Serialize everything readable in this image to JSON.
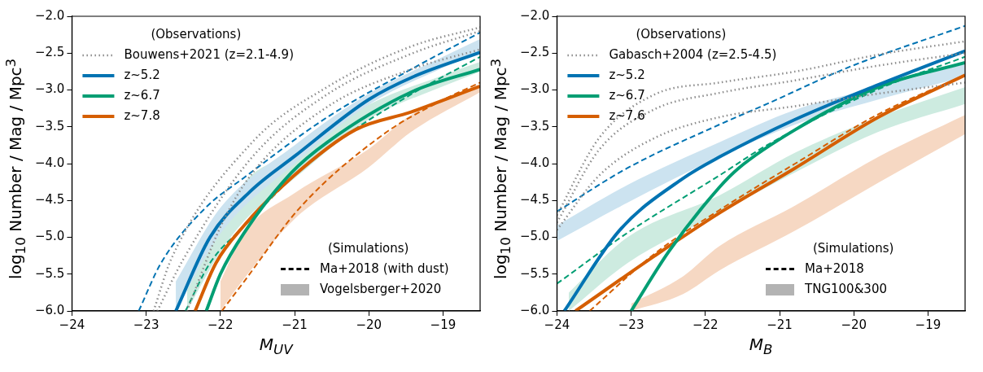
{
  "chart_data": [
    {
      "type": "line",
      "xlabel": "M$_{UV}$",
      "ylabel": "log$_{10}$ Number / Mag / Mpc$^{3}$",
      "legend": "top left",
      "legend_title": "(Observations)",
      "grid": false,
      "xlim": [
        -24,
        -18.5
      ],
      "xticks": [
        {
          "value": -24,
          "label": "−24"
        },
        {
          "value": -23,
          "label": "−23"
        },
        {
          "value": -22,
          "label": "−22"
        },
        {
          "value": -21,
          "label": "−21"
        },
        {
          "value": -20,
          "label": "−20"
        },
        {
          "value": -19,
          "label": "−19"
        }
      ],
      "ylim": [
        -6,
        -2
      ],
      "yticks": [
        {
          "value": -6,
          "label": "−6.0"
        },
        {
          "value": -5.5,
          "label": "−5.5"
        },
        {
          "value": -5,
          "label": "−5.0"
        },
        {
          "value": -4.5,
          "label": "−4.5"
        },
        {
          "value": -4,
          "label": "−4.0"
        },
        {
          "value": -3.5,
          "label": "−3.5"
        },
        {
          "value": -3,
          "label": "−3.0"
        },
        {
          "value": -2.5,
          "label": "−2.5"
        },
        {
          "value": -2,
          "label": "−2.0"
        }
      ],
      "annotations": [
        "(Simulations)",
        "Ma+2018 (with dust)",
        "Vogelsberger+2020"
      ],
      "series": [
        {
          "name": "Bouwens+2021 (z=2.1-4.9)",
          "color": "#8c8c8c",
          "line_style": "dotted",
          "x": [
            -22.9,
            -22.66,
            -21.57,
            -20.56,
            -19.43,
            -18.5
          ],
          "values": [
            -6,
            -5.29,
            -3.71,
            -2.96,
            -2.41,
            -2.15
          ]
        },
        {
          "color": "#8c8c8c",
          "line_style": "dotted",
          "x": [
            -22.85,
            -22.5,
            -21.57,
            -20.56,
            -19.43,
            -18.5
          ],
          "values": [
            -6,
            -5.3,
            -3.91,
            -3.06,
            -2.51,
            -2.2
          ]
        },
        {
          "color": "#8c8c8c",
          "line_style": "dotted",
          "x": [
            -22.45,
            -21.99,
            -21.57,
            -20.56,
            -19.43,
            -18.5
          ],
          "values": [
            -6,
            -4.84,
            -4.13,
            -3.23,
            -2.72,
            -2.45
          ]
        },
        {
          "name": "z~5.2",
          "color": "#0173b2",
          "line_style": "solid",
          "x": [
            -22.6,
            -22.14,
            -21.6,
            -21,
            -20,
            -19.4,
            -18.5
          ],
          "values": [
            -6,
            -5.0,
            -4.38,
            -3.9,
            -3.13,
            -2.82,
            -2.49
          ]
        },
        {
          "name": "z~6.7",
          "color": "#029e73",
          "line_style": "solid",
          "x": [
            -22.19,
            -22.0,
            -21.68,
            -21.04,
            -20.56,
            -19.43,
            -18.5
          ],
          "values": [
            -6,
            -5.5,
            -4.94,
            -4.12,
            -3.71,
            -3.03,
            -2.72
          ]
        },
        {
          "name": "z~7.8",
          "color": "#d55e00",
          "line_style": "solid",
          "x": [
            -22.34,
            -22.06,
            -21.68,
            -21.04,
            -20.18,
            -19.43,
            -18.5
          ],
          "values": [
            -6,
            -5.35,
            -4.84,
            -4.19,
            -3.54,
            -3.3,
            -2.95
          ]
        },
        {
          "color": "#0173b2",
          "line_style": "dashed",
          "x": [
            -23.1,
            -22.8,
            -22.2,
            -21.68,
            -20.56,
            -19.43,
            -18.5
          ],
          "values": [
            -6,
            -5.35,
            -4.6,
            -4.19,
            -3.37,
            -2.72,
            -2.22
          ]
        },
        {
          "color": "#029e73",
          "line_style": "dashed",
          "x": [
            -22.47,
            -22.14,
            -21.68,
            -21.04,
            -20.44,
            -19.43,
            -18.5
          ],
          "values": [
            -6,
            -5.35,
            -4.85,
            -4.2,
            -3.71,
            -3.06,
            -2.55
          ]
        },
        {
          "color": "#d55e00",
          "line_style": "dashed",
          "x": [
            -21.98,
            -21.68,
            -20.93,
            -19.8,
            -19.05,
            -18.5
          ],
          "values": [
            -6,
            -5.6,
            -4.6,
            -3.6,
            -3.16,
            -2.9
          ]
        },
        {
          "color": "#cce3f0",
          "x": [
            -22.6,
            -22,
            -21,
            -20,
            -19,
            -18.5
          ],
          "values": [
            null,
            null,
            null,
            null,
            null,
            null
          ],
          "upper": [
            -5.6,
            -4.6,
            -3.75,
            -3.05,
            -2.55,
            -2.31
          ],
          "lower": [
            -6,
            -4.95,
            -4.0,
            -3.2,
            -2.7,
            -2.49
          ]
        },
        {
          "color": "#cdebe0",
          "x": [
            -22.45,
            -22,
            -21.68,
            -21,
            -20,
            -19,
            -18.5
          ],
          "values": [
            null,
            null,
            null,
            null,
            null,
            null,
            null
          ],
          "upper": [
            -5.6,
            -4.85,
            -4.26,
            -3.85,
            -3.2,
            -2.8,
            -2.62
          ],
          "lower": [
            -6,
            -5.2,
            -4.78,
            -4.2,
            -3.4,
            -2.95,
            -2.75
          ]
        },
        {
          "color": "#f6d8c3",
          "x": [
            -22.0,
            -21.68,
            -21,
            -20,
            -19.43,
            -18.5
          ],
          "values": [
            null,
            null,
            null,
            null,
            null,
            null
          ],
          "upper": [
            -5.6,
            -4.94,
            -4.4,
            -3.8,
            -3.34,
            -2.96
          ],
          "lower": [
            -6,
            -5.56,
            -4.75,
            -4.05,
            -3.57,
            -3.03
          ]
        }
      ]
    },
    {
      "type": "line",
      "xlabel": "M$_{B}$",
      "ylabel": "log$_{10}$ Number / Mag / Mpc$^{3}$",
      "legend": "top left",
      "legend_title": "(Observations)",
      "grid": false,
      "xlim": [
        -24,
        -18.5
      ],
      "xticks": [
        {
          "value": -24,
          "label": "−24"
        },
        {
          "value": -23,
          "label": "−23"
        },
        {
          "value": -22,
          "label": "−22"
        },
        {
          "value": -21,
          "label": "−21"
        },
        {
          "value": -20,
          "label": "−20"
        },
        {
          "value": -19,
          "label": "−19"
        }
      ],
      "ylim": [
        -6,
        -2
      ],
      "yticks": [
        {
          "value": -6,
          "label": "−6.0"
        },
        {
          "value": -5.5,
          "label": "−5.5"
        },
        {
          "value": -5,
          "label": "−5.0"
        },
        {
          "value": -4.5,
          "label": "−4.5"
        },
        {
          "value": -4,
          "label": "−4.0"
        },
        {
          "value": -3.5,
          "label": "−3.5"
        },
        {
          "value": -3,
          "label": "−3.0"
        },
        {
          "value": -2.5,
          "label": "−2.5"
        },
        {
          "value": -2,
          "label": "−2.0"
        }
      ],
      "annotations": [
        "(Simulations)",
        "Ma+2018",
        "TNG100&300"
      ],
      "series": [
        {
          "name": "Gabasch+2004 (z=2.5-4.5)",
          "color": "#8c8c8c",
          "line_style": "dotted",
          "x": [
            -24,
            -23.43,
            -22.68,
            -21.81,
            -20.79,
            -19.67,
            -18.5
          ],
          "values": [
            -4.7,
            -3.65,
            -3.06,
            -2.9,
            -2.75,
            -2.52,
            -2.34
          ]
        },
        {
          "color": "#8c8c8c",
          "line_style": "dotted",
          "x": [
            -24,
            -23.43,
            -22.68,
            -21.81,
            -20.79,
            -19.67,
            -18.5
          ],
          "values": [
            -4.8,
            -3.81,
            -3.26,
            -3.04,
            -2.87,
            -2.67,
            -2.5
          ]
        },
        {
          "color": "#8c8c8c",
          "line_style": "dotted",
          "x": [
            -24,
            -23.43,
            -22.68,
            -21.81,
            -20.79,
            -19.67,
            -18.5
          ],
          "values": [
            -4.9,
            -4.16,
            -3.65,
            -3.37,
            -3.22,
            -3.05,
            -2.9
          ]
        },
        {
          "name": "z~5.2",
          "color": "#0173b2",
          "line_style": "solid",
          "x": [
            -23.9,
            -23.16,
            -22.3,
            -21.81,
            -20.79,
            -19.67,
            -18.5
          ],
          "values": [
            -6,
            -4.91,
            -4.2,
            -3.91,
            -3.4,
            -2.93,
            -2.47
          ]
        },
        {
          "name": "z~6.7",
          "color": "#029e73",
          "line_style": "solid",
          "x": [
            -23.0,
            -22.49,
            -21.81,
            -21.55,
            -20.79,
            -19.67,
            -18.5
          ],
          "values": [
            -6,
            -5.19,
            -4.32,
            -4.06,
            -3.54,
            -2.96,
            -2.63
          ]
        },
        {
          "name": "z~7.6",
          "color": "#d55e00",
          "line_style": "solid",
          "x": [
            -23.75,
            -22.68,
            -21.81,
            -20.79,
            -19.67,
            -18.5
          ],
          "values": [
            -6,
            -5.25,
            -4.67,
            -4.06,
            -3.37,
            -2.8
          ]
        },
        {
          "color": "#0173b2",
          "line_style": "dashed",
          "x": [
            -24,
            -23.05,
            -21.81,
            -21.17,
            -20.04,
            -18.5
          ],
          "values": [
            -4.65,
            -4.06,
            -3.47,
            -3.19,
            -2.68,
            -2.13
          ]
        },
        {
          "color": "#029e73",
          "line_style": "dashed",
          "x": [
            -24,
            -23.05,
            -21.81,
            -21.17,
            -19.67,
            -18.5
          ],
          "values": [
            -5.63,
            -4.94,
            -4.16,
            -3.75,
            -2.99,
            -2.55
          ]
        },
        {
          "color": "#d55e00",
          "line_style": "dashed",
          "x": [
            -23.56,
            -22.68,
            -21.81,
            -20.79,
            -19.67,
            -18.5
          ],
          "values": [
            -6,
            -5.22,
            -4.63,
            -4.0,
            -3.33,
            -2.8
          ]
        },
        {
          "color": "#cce3f0",
          "x": [
            -24,
            -23.05,
            -21.81,
            -20.79,
            -19.67,
            -18.5
          ],
          "values": [
            null,
            null,
            null,
            null,
            null,
            null
          ],
          "upper": [
            -4.84,
            -4.29,
            -3.71,
            -3.27,
            -2.96,
            -2.65
          ],
          "lower": [
            -5.05,
            -4.53,
            -3.91,
            -3.47,
            -3.13,
            -2.82
          ]
        },
        {
          "color": "#cdebe0",
          "x": [
            -23.84,
            -23.05,
            -21.81,
            -20.79,
            -19.67,
            -18.5
          ],
          "values": [
            null,
            null,
            null,
            null,
            null,
            null
          ],
          "upper": [
            -5.75,
            -5.0,
            -4.43,
            -3.85,
            -3.37,
            -2.96
          ],
          "lower": [
            -6,
            -5.35,
            -4.67,
            -4.12,
            -3.57,
            -3.19
          ]
        },
        {
          "color": "#f6d8c3",
          "x": [
            -23.0,
            -22.3,
            -21.81,
            -20.79,
            -19.67,
            -18.5
          ],
          "values": [
            null,
            null,
            null,
            null,
            null,
            null
          ],
          "upper": [
            -5.9,
            -5.53,
            -5.12,
            -4.57,
            -3.91,
            -3.34
          ],
          "lower": [
            -6,
            -5.77,
            -5.45,
            -4.91,
            -4.26,
            -3.6
          ]
        }
      ]
    }
  ]
}
